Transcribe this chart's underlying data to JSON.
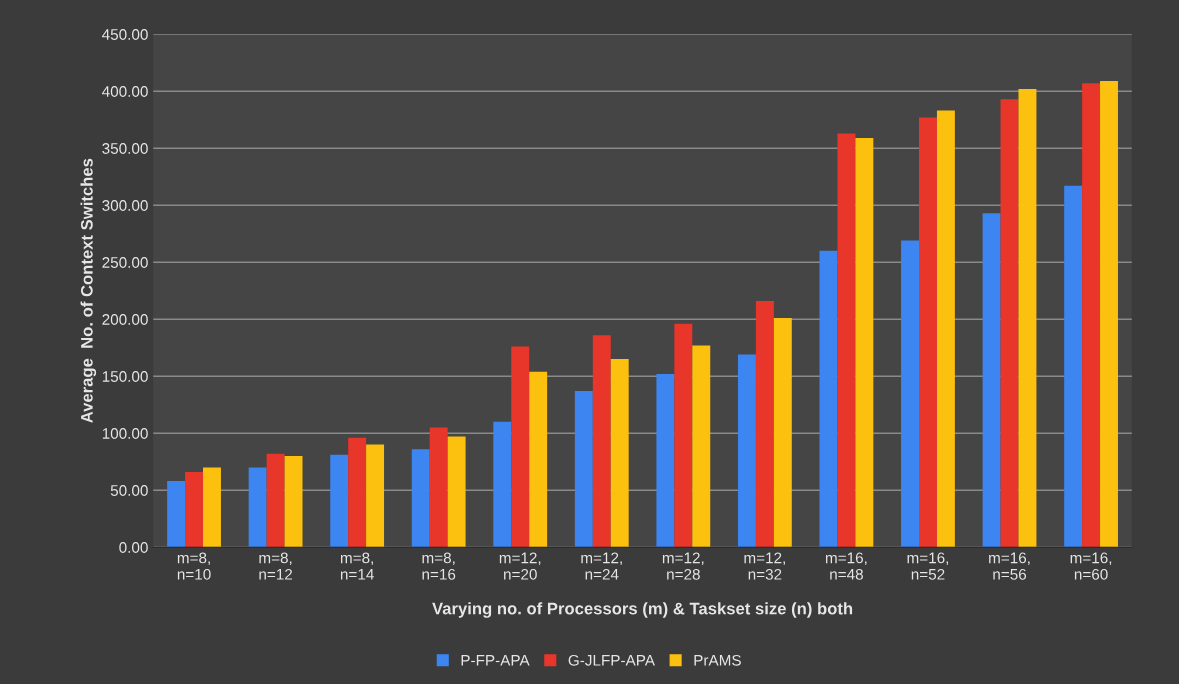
{
  "chart_data": {
    "type": "bar",
    "xlabel": "Varying no. of Processors (m) & Taskset size (n) both",
    "ylabel": "Average  No. of Context Switches",
    "categories": [
      "m=8,\nn=10",
      "m=8,\nn=12",
      "m=8,\nn=14",
      "m=8,\nn=16",
      "m=12,\nn=20",
      "m=12,\nn=24",
      "m=12,\nn=28",
      "m=12,\nn=32",
      "m=16,\nn=48",
      "m=16,\nn=52",
      "m=16,\nn=56",
      "m=16,\nn=60"
    ],
    "series": [
      {
        "name": "P-FP-APA",
        "color": "#3d85f0",
        "values": [
          58,
          70,
          81,
          86,
          110,
          137,
          152,
          169,
          260,
          269,
          293,
          317
        ]
      },
      {
        "name": "G-JLFP-APA",
        "color": "#e8362a",
        "values": [
          66,
          82,
          96,
          105,
          176,
          186,
          196,
          216,
          363,
          377,
          393,
          407
        ]
      },
      {
        "name": "PrAMS",
        "color": "#fcc00e",
        "values": [
          70,
          80,
          90,
          97,
          154,
          165,
          177,
          201,
          359,
          383,
          402,
          409
        ]
      }
    ],
    "ylim": [
      0,
      450
    ],
    "yticks": [
      {
        "value": 0,
        "label": "0.00"
      },
      {
        "value": 50,
        "label": "50.00"
      },
      {
        "value": 100,
        "label": "100.00"
      },
      {
        "value": 150,
        "label": "150.00"
      },
      {
        "value": 200,
        "label": "200.00"
      },
      {
        "value": 250,
        "label": "250.00"
      },
      {
        "value": 300,
        "label": "300.00"
      },
      {
        "value": 350,
        "label": "350.00"
      },
      {
        "value": 400,
        "label": "400.00"
      },
      {
        "value": 450,
        "label": "450.00"
      }
    ],
    "grid": "y",
    "legend": "bottom"
  }
}
